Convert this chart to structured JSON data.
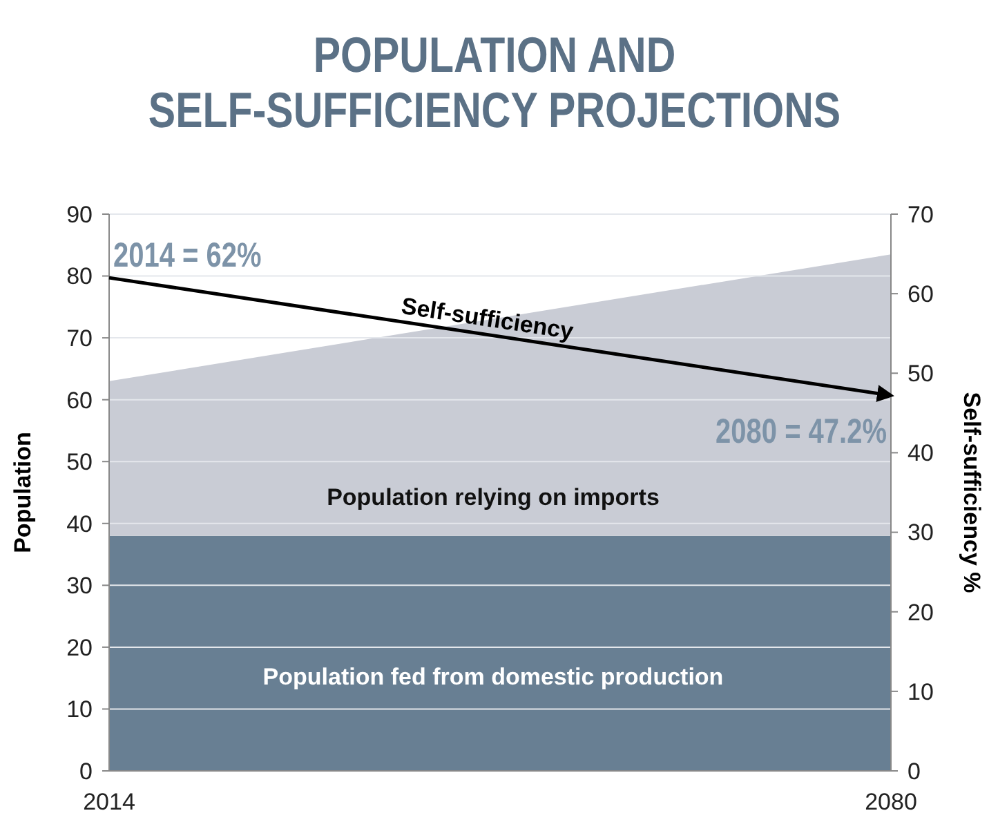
{
  "chart_data": {
    "type": "area",
    "title": "POPULATION AND\nSELF-SUFFICIENCY PROJECTIONS",
    "ylabel": "Population",
    "y2label": "Self-sufficiency %",
    "x": [
      2014,
      2080
    ],
    "xlim": [
      2014,
      2080
    ],
    "xticks": [
      2014,
      2080
    ],
    "ylim": [
      0,
      90
    ],
    "yticks": [
      0,
      10,
      20,
      30,
      40,
      50,
      60,
      70,
      80,
      90
    ],
    "y2lim": [
      0,
      70
    ],
    "y2ticks": [
      0,
      10,
      20,
      30,
      40,
      50,
      60,
      70
    ],
    "stacked": true,
    "grid": "y",
    "series": [
      {
        "name": "Population fed from domestic production",
        "color": "#687f93",
        "values": [
          38,
          38
        ]
      },
      {
        "name": "Population relying on imports",
        "color": "#c9ccd5",
        "values": [
          25,
          45.5
        ]
      },
      {
        "name": "Self-sufficiency",
        "type": "line",
        "axis": "y2",
        "color": "#000000",
        "values": [
          62,
          47.2
        ],
        "value_labels": [
          "2014 = 62%",
          "2080 = 47.2%"
        ]
      }
    ]
  }
}
